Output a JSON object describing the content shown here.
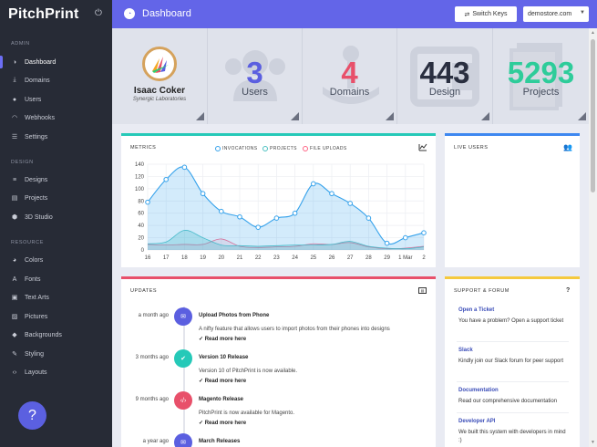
{
  "app": {
    "logo": "PitchPrint"
  },
  "sidebar": {
    "sections": [
      {
        "title": "ADMIN"
      },
      {
        "title": "DESIGN"
      },
      {
        "title": "RESOURCE"
      }
    ],
    "items": [
      {
        "label": "Dashboard",
        "icon": "dashboard-icon"
      },
      {
        "label": "Domains",
        "icon": "download-icon"
      },
      {
        "label": "Users",
        "icon": "user-icon"
      },
      {
        "label": "Webhooks",
        "icon": "wifi-icon"
      },
      {
        "label": "Settings",
        "icon": "list-icon"
      },
      {
        "label": "Designs",
        "icon": "layers-icon"
      },
      {
        "label": "Projects",
        "icon": "folder-icon"
      },
      {
        "label": "3D Studio",
        "icon": "cube-icon"
      },
      {
        "label": "Colors",
        "icon": "palette-icon"
      },
      {
        "label": "Fonts",
        "icon": "font-icon"
      },
      {
        "label": "Text Arts",
        "icon": "text-art-icon"
      },
      {
        "label": "Pictures",
        "icon": "image-icon"
      },
      {
        "label": "Backgrounds",
        "icon": "fill-icon"
      },
      {
        "label": "Styling",
        "icon": "brush-icon"
      },
      {
        "label": "Layouts",
        "icon": "code-icon"
      }
    ],
    "help": "?"
  },
  "header": {
    "title": "Dashboard",
    "switch_keys": "Switch Keys",
    "store": "demostore.com"
  },
  "profile": {
    "name": "Isaac Coker",
    "org": "Synergic Laboratories"
  },
  "stats": [
    {
      "value": "3",
      "label": "Users",
      "color": "#5b5fe0"
    },
    {
      "value": "4",
      "label": "Domains",
      "color": "#e8506a"
    },
    {
      "value": "443",
      "label": "Design",
      "color": "#2a2f40"
    },
    {
      "value": "5293",
      "label": "Projects",
      "color": "#2ecc9a"
    }
  ],
  "metrics": {
    "title": "METRICS",
    "legend": [
      {
        "label": "INVOCATIONS",
        "color": "#36a2eb"
      },
      {
        "label": "PROJECTS",
        "color": "#4bc0c0"
      },
      {
        "label": "FILE UPLOADS",
        "color": "#ff6384"
      }
    ]
  },
  "chart_data": {
    "type": "line",
    "categories": [
      "16",
      "17",
      "18",
      "19",
      "20",
      "21",
      "22",
      "23",
      "24",
      "25",
      "26",
      "27",
      "28",
      "29",
      "1 Mar",
      "2"
    ],
    "ylim": [
      0,
      140
    ],
    "yticks": [
      "0",
      "20",
      "40",
      "60",
      "80",
      "100",
      "120",
      "140"
    ],
    "series": [
      {
        "name": "INVOCATIONS",
        "values": [
          78,
          115,
          135,
          92,
          63,
          54,
          37,
          52,
          60,
          108,
          92,
          76,
          52,
          11,
          20,
          28
        ]
      },
      {
        "name": "PROJECTS",
        "values": [
          10,
          13,
          32,
          20,
          8,
          7,
          6,
          7,
          8,
          8,
          9,
          14,
          6,
          3,
          2,
          5
        ]
      },
      {
        "name": "FILE UPLOADS",
        "values": [
          9,
          8,
          9,
          9,
          18,
          6,
          4,
          5,
          6,
          10,
          9,
          12,
          5,
          2,
          3,
          6
        ]
      }
    ]
  },
  "live_users": {
    "title": "LIVE USERS"
  },
  "updates": {
    "title": "UPDATES",
    "items": [
      {
        "time": "a month ago",
        "title": "Upload Photos from Phone",
        "body": "A nifty feature that allows users to import photos from their phones into designs",
        "more": "✓ Read more here",
        "color": "#5b5fe0"
      },
      {
        "time": "3 months ago",
        "title": "Version 10 Release",
        "body": "Version 10 of PitchPrint is now available.",
        "more": "✓ Read more here",
        "color": "#25c9b8"
      },
      {
        "time": "9 months ago",
        "title": "Magento Release",
        "body": "PitchPrint is now available for Magento.",
        "more": "✓ Read more here",
        "color": "#e8506a"
      },
      {
        "time": "a year ago",
        "title": "March Releases",
        "body": "",
        "more": "",
        "color": "#5b5fe0"
      }
    ]
  },
  "support": {
    "title": "SUPPORT & FORUM",
    "help": "?",
    "items": [
      {
        "title": "Open a Ticket",
        "body": "You have a problem? Open a support ticket"
      },
      {
        "title": "Slack",
        "body": "Kindly join our Slack forum for peer support"
      },
      {
        "title": "Documentation",
        "body": "Read our comprehensive documentation"
      },
      {
        "title": "Developer API",
        "body": "We built this system with developers in mind :)"
      }
    ]
  }
}
